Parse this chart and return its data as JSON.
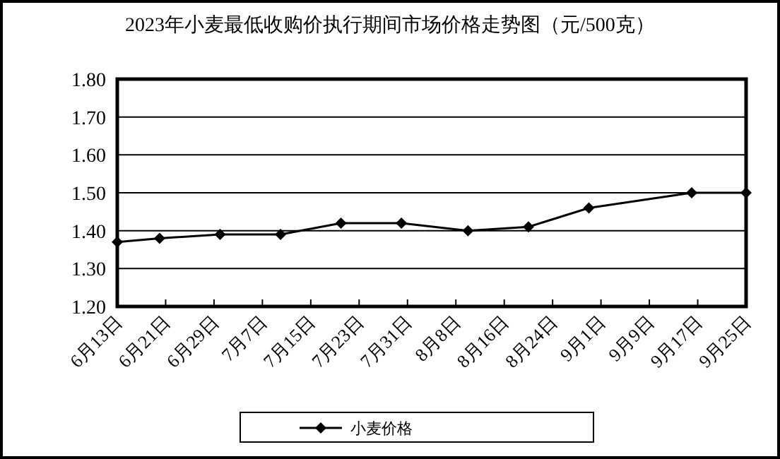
{
  "chart_data": {
    "type": "line",
    "title": "2023年小麦最低收购价执行期间市场价格走势图（元/500克）",
    "series": [
      {
        "name": "小麦价格",
        "color": "#000000",
        "marker": "diamond",
        "line_style": "solid",
        "x": [
          "--06-13",
          "--06-20",
          "--06-30",
          "--07-10",
          "--07-20",
          "--07-30",
          "--08-10",
          "--08-20",
          "--08-30",
          "--09-16",
          "--09-25"
        ],
        "values": [
          1.37,
          1.38,
          1.39,
          1.39,
          1.42,
          1.42,
          1.4,
          1.41,
          1.46,
          1.5,
          1.5
        ]
      }
    ],
    "xlim": [
      "--06-13",
      "--09-25"
    ],
    "xticks": [
      {
        "value": "--06-13",
        "label": "6月13日"
      },
      {
        "value": "--06-21",
        "label": "6月21日"
      },
      {
        "value": "--06-29",
        "label": "6月29日"
      },
      {
        "value": "--07-07",
        "label": "7月7日"
      },
      {
        "value": "--07-15",
        "label": "7月15日"
      },
      {
        "value": "--07-23",
        "label": "7月23日"
      },
      {
        "value": "--07-31",
        "label": "7月31日"
      },
      {
        "value": "--08-08",
        "label": "8月8日"
      },
      {
        "value": "--08-16",
        "label": "8月16日"
      },
      {
        "value": "--08-24",
        "label": "8月24日"
      },
      {
        "value": "--09-01",
        "label": "9月1日"
      },
      {
        "value": "--09-09",
        "label": "9月9日"
      },
      {
        "value": "--09-17",
        "label": "9月17日"
      },
      {
        "value": "--09-25",
        "label": "9月25日"
      }
    ],
    "ylim": [
      1.2,
      1.8
    ],
    "yticks": [
      {
        "value": 1.2,
        "label": "1.20"
      },
      {
        "value": 1.3,
        "label": "1.30"
      },
      {
        "value": 1.4,
        "label": "1.40"
      },
      {
        "value": 1.5,
        "label": "1.50"
      },
      {
        "value": 1.6,
        "label": "1.60"
      },
      {
        "value": 1.7,
        "label": "1.70"
      },
      {
        "value": 1.8,
        "label": "1.80"
      }
    ],
    "grid": "y",
    "legend": "bottom"
  }
}
